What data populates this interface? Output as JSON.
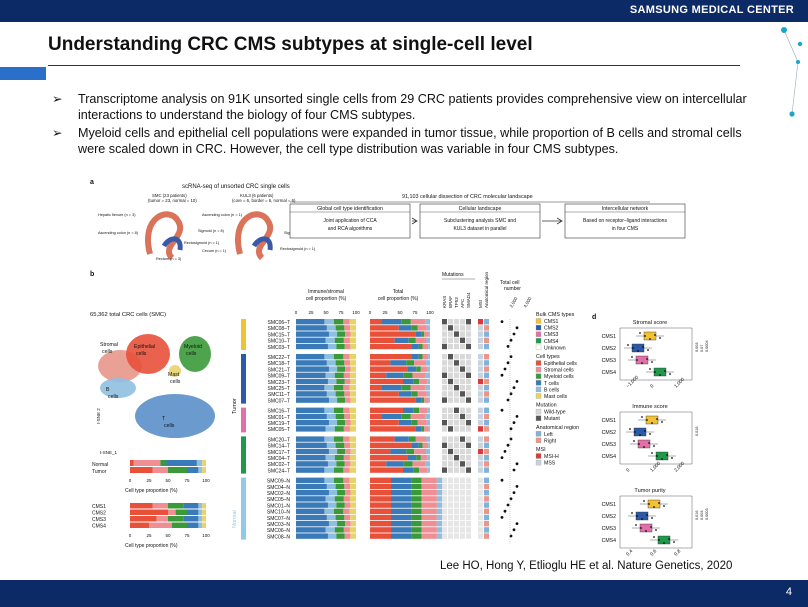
{
  "header": {
    "logo_text": "SAMSUNG MEDICAL CENTER"
  },
  "slide": {
    "title": "Understanding CRC CMS subtypes at single-cell level",
    "bullets": [
      "Transcriptome analysis on 91K unsorted single cells from 29 CRC patients provides comprehensive view on intercellular interactions to understand the biology of four CMS subtypes.",
      "Myeloid cells and epithelial cell populations were expanded in tumor tissue, while proportion of B cells and stromal cells were scaled down in CRC. However, the cell type distribution was variable in four CMS subtypes."
    ],
    "bullet_marker": "➢",
    "citation": "Lee HO, Hong Y, Etlioglu HE et al. Nature Genetics, 2020",
    "page_number": "4"
  },
  "figure": {
    "panel_a": {
      "label": "a",
      "title": "scRNA-seq of unsorted CRC single cells",
      "cohort1": "SMC (23 patients)",
      "cohort1_sub": "(tumor = 23, normal = 10)",
      "cohort2": "KUL3 (6 patients)",
      "cohort2_sub": "(core = 6, border = 6, normal = 6)",
      "dissection_title": "91,103 cellular dissection of CRC molecular landscape",
      "anatomy_left": [
        "Hepatic flexure (n = 3)",
        "Ascending colon (n = 8)",
        "Sigmoid (n = 8)",
        "Rectosigmoid (n = 1)",
        "Rectum (n = 3)"
      ],
      "anatomy_right": [
        "Ascending colon (n = 1)",
        "Sigmoid (n = 3)",
        "Rectosigmoid (n = 1)",
        "Cecum (n = 1)"
      ],
      "boxes": [
        {
          "title": "Global cell type identification",
          "body": "Joint application of CCA and RCA algorithms"
        },
        {
          "title": "Cellular landscape",
          "body": "Subclustering analysis SMC and KUL3 dataset in parallel"
        },
        {
          "title": "Intercellular network",
          "body": "Based on receptor–ligand interactions in four CMS"
        }
      ]
    },
    "panel_b": {
      "label": "b",
      "tsne_title": "65,362 total CRC cells (SMC)",
      "tsne_axis_y": "t-SNE 2",
      "tsne_axis_x": "t-SNE_1",
      "clusters": [
        "Stromal cells",
        "Epithelial cells",
        "Myeloid cells",
        "Mast cells",
        "B cells",
        "T cells"
      ],
      "col1_header": "Immune/stromal cell proportion (%)",
      "col2_header": "Total cell proportion (%)",
      "mutations_header": "Mutations",
      "mutation_genes": [
        "KRAS",
        "BRAF",
        "TP53",
        "APC",
        "SMAD4"
      ],
      "extra_cols": [
        "MSI",
        "Anatomical region"
      ],
      "total_header": "Total cell number",
      "total_ticks": [
        "2,000",
        "4,000"
      ],
      "axis_ticks": [
        "0",
        "25",
        "50",
        "75",
        "100"
      ],
      "group_tumor": "Tumor",
      "group_normal": "Normal",
      "samples_g1": [
        "SMC06–T",
        "SMC08–T",
        "SMC15–T",
        "SMC10–T",
        "SMC03–T"
      ],
      "samples_g2": [
        "SMC22–T",
        "SMC18–T",
        "SMC21–T",
        "SMC09–T",
        "SMC23–T",
        "SMC25–T",
        "SMC11–T",
        "SMC07–T"
      ],
      "samples_g3": [
        "SMC16–T",
        "SMC01–T",
        "SMC19–T",
        "SMC05–T"
      ],
      "samples_g4": [
        "SMC20–T",
        "SMC14–T",
        "SMC17–T",
        "SMC04–T",
        "SMC02–T",
        "SMC24–T"
      ],
      "samples_normal": [
        "SMC09–N",
        "SMC04–N",
        "SMC02–N",
        "SMC05–N",
        "SMC01–N",
        "SMC10–N",
        "SMC07–N",
        "SMC03–N",
        "SMC06–N",
        "SMC08–N"
      ],
      "bar_left_label": "Cell type proportion (%)",
      "bar_left_rows1": [
        "Normal",
        "Tumor"
      ],
      "bar_left_rows2": [
        "CMS1",
        "CMS2",
        "CMS3",
        "CMS4"
      ],
      "legend": {
        "bulk_title": "Bulk CMS types",
        "bulk": [
          {
            "label": "CMS1",
            "color": "#f2c230"
          },
          {
            "label": "CMS2",
            "color": "#2a5aa8"
          },
          {
            "label": "CMS3",
            "color": "#e36fa8"
          },
          {
            "label": "CMS4",
            "color": "#1e9a4a"
          },
          {
            "label": "Unknown",
            "color": "#ffffff"
          }
        ],
        "cell_title": "Cell types",
        "cells": [
          {
            "label": "Epithelial cells",
            "color": "#e8503a"
          },
          {
            "label": "Stromal cells",
            "color": "#ef8f94"
          },
          {
            "label": "Myeloid cells",
            "color": "#3a9a3a"
          },
          {
            "label": "T cells",
            "color": "#3a7ab8"
          },
          {
            "label": "B cells",
            "color": "#8fbfe0"
          },
          {
            "label": "Mast cells",
            "color": "#e8d36a"
          }
        ],
        "mut_title": "Mutation",
        "mut": [
          {
            "label": "Wild-type",
            "color": "#d9d9d9"
          },
          {
            "label": "Mutant",
            "color": "#555555"
          }
        ],
        "anat_title": "Anatomical region",
        "anat": [
          {
            "label": "Left",
            "color": "#7fb3d9"
          },
          {
            "label": "Right",
            "color": "#e8978a"
          }
        ],
        "msi_title": "MSI",
        "msi": [
          {
            "label": "MSI-H",
            "color": "#d93a3a"
          },
          {
            "label": "MSS",
            "color": "#c9d3e0"
          }
        ]
      }
    },
    "panel_d": {
      "label": "d",
      "plots": [
        {
          "title": "Stromal score",
          "cms": [
            "CMS1",
            "CMS2",
            "CMS3",
            "CMS4"
          ],
          "ticks": [
            "−1,000",
            "0",
            "1,000"
          ],
          "pvals": [
            "0.003",
            "0.07",
            "0.0004"
          ]
        },
        {
          "title": "Immune score",
          "cms": [
            "CMS1",
            "CMS2",
            "CMS3",
            "CMS4"
          ],
          "ticks": [
            "0",
            "1,000",
            "2,000"
          ],
          "pvals": [
            "0.016"
          ]
        },
        {
          "title": "Tumor purity",
          "cms": [
            "CMS1",
            "CMS2",
            "CMS3",
            "CMS4"
          ],
          "ticks": [
            "0.4",
            "0.6",
            "0.8"
          ],
          "pvals": [
            "0.016",
            "0.003",
            "0.0003"
          ]
        }
      ]
    }
  }
}
